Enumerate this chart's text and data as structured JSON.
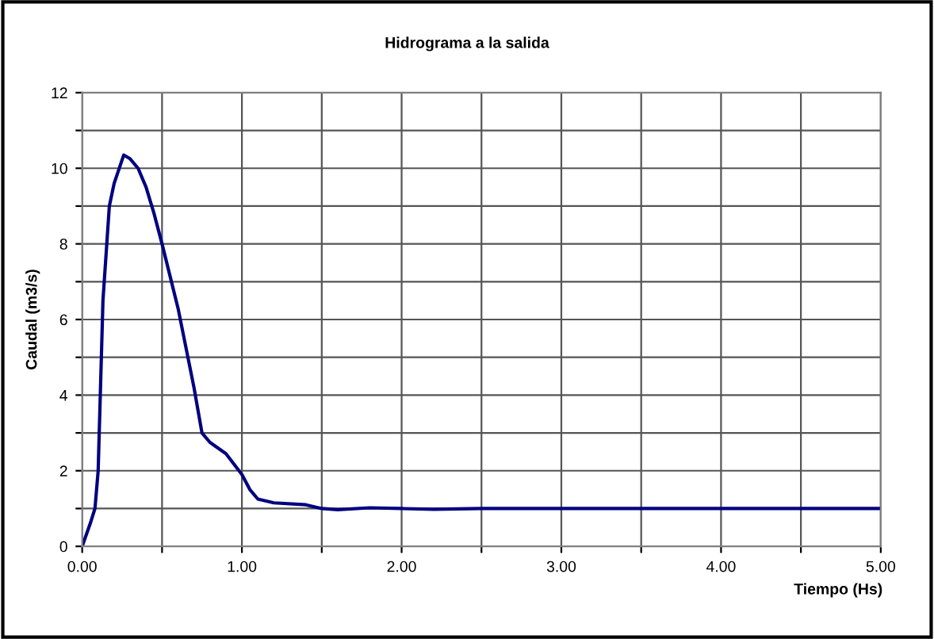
{
  "chart_data": {
    "type": "line",
    "title": "Hidrograma a la salida",
    "xlabel": "Tiempo (Hs)",
    "ylabel": "Caudal (m3/s)",
    "series": [
      {
        "color": "#000080",
        "x": [
          0.0,
          0.05,
          0.08,
          0.1,
          0.13,
          0.17,
          0.2,
          0.26,
          0.3,
          0.35,
          0.4,
          0.45,
          0.5,
          0.6,
          0.7,
          0.75,
          0.8,
          0.9,
          1.0,
          1.05,
          1.1,
          1.2,
          1.4,
          1.5,
          1.6,
          1.8,
          2.0,
          2.2,
          2.5,
          3.0,
          3.5,
          4.0,
          4.5,
          5.0
        ],
        "values": [
          0.0,
          0.6,
          1.0,
          2.0,
          6.5,
          9.0,
          9.6,
          10.35,
          10.25,
          10.0,
          9.5,
          8.8,
          8.0,
          6.3,
          4.2,
          3.0,
          2.75,
          2.45,
          1.9,
          1.5,
          1.25,
          1.15,
          1.1,
          1.0,
          0.97,
          1.02,
          1.0,
          0.98,
          1.0,
          1.0,
          1.0,
          1.0,
          1.0,
          1.0
        ]
      }
    ],
    "xlim": [
      0,
      5
    ],
    "ylim": [
      0,
      12
    ],
    "xticks": [
      {
        "value": 0,
        "label": "0.00"
      },
      {
        "value": 0.5,
        "label": null
      },
      {
        "value": 1,
        "label": "1.00"
      },
      {
        "value": 1.5,
        "label": null
      },
      {
        "value": 2,
        "label": "2.00"
      },
      {
        "value": 2.5,
        "label": null
      },
      {
        "value": 3,
        "label": "3.00"
      },
      {
        "value": 3.5,
        "label": null
      },
      {
        "value": 4,
        "label": "4.00"
      },
      {
        "value": 4.5,
        "label": null
      },
      {
        "value": 5,
        "label": "5.00"
      }
    ],
    "yticks": [
      0,
      {
        "value": 1,
        "label": null
      },
      2,
      {
        "value": 3,
        "label": null
      },
      4,
      {
        "value": 5,
        "label": null
      },
      6,
      {
        "value": 7,
        "label": null
      },
      8,
      {
        "value": 9,
        "label": null
      },
      10,
      {
        "value": 11,
        "label": null
      },
      12
    ],
    "grid": true,
    "marker": "none",
    "line_style": "solid"
  }
}
